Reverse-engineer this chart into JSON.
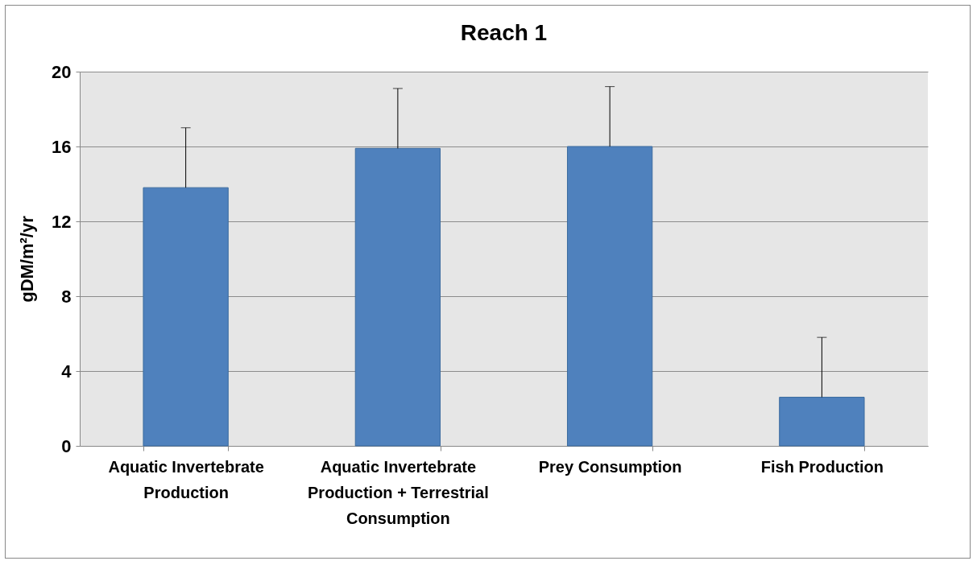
{
  "chart_data": {
    "type": "bar",
    "title": "Reach 1",
    "ylabel": "gDM/m²/yr",
    "categories": [
      "Aquatic Invertebrate Production",
      "Aquatic Invertebrate Production + Terrestrial Consumption",
      "Prey Consumption",
      "Fish Production"
    ],
    "values": [
      13.8,
      15.9,
      16.0,
      2.6
    ],
    "errors": [
      [
        13.8,
        17.0
      ],
      [
        15.9,
        19.1
      ],
      [
        16.0,
        19.2
      ],
      [
        2.6,
        5.8
      ]
    ],
    "color": "#4f81bd",
    "ylim": [
      0,
      20
    ],
    "yticks": [
      0,
      4,
      8,
      12,
      16,
      20
    ],
    "grid": "y"
  }
}
